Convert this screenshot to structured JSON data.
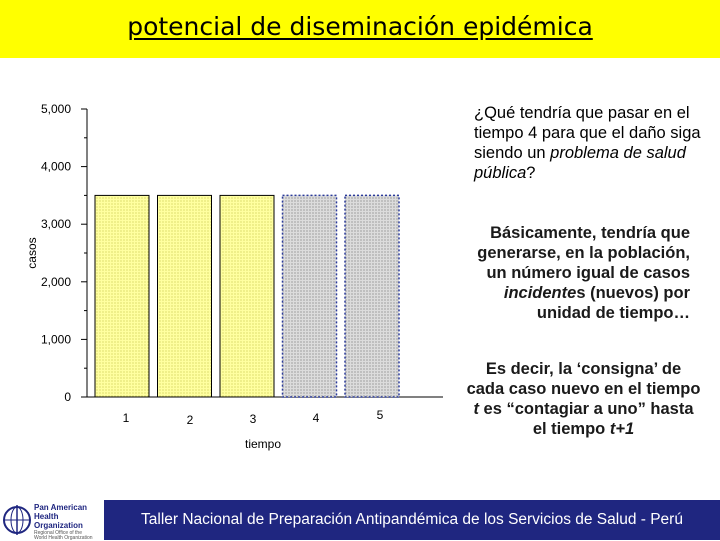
{
  "slide": {
    "title": "potencial de diseminación epidémica",
    "question_parts": [
      "¿Qué tendría que pasar en el tiempo 4 para que el daño siga siendo un ",
      "problema de salud pública",
      "?"
    ],
    "answer_parts": [
      "Básicamente, tendría que generarse, en la población, un número igual de casos ",
      "incidente",
      "s (nuevos) por unidad de tiempo…"
    ],
    "explanation_parts": [
      "Es decir, la ‘consigna’ de cada caso nuevo en el tiempo ",
      "t",
      " es “contagiar a uno” hasta el tiempo ",
      "t+1"
    ],
    "footer": "Taller Nacional de Preparación Antipandémica de los Servicios de Salud - Perú",
    "logo": {
      "lines": [
        "Pan American",
        "Health",
        "Organization"
      ],
      "sub": [
        "Regional Office of the",
        "World Health Organization"
      ]
    }
  },
  "chart_data": {
    "type": "bar",
    "categories": [
      "1",
      "2",
      "3",
      "4",
      "5"
    ],
    "values": [
      3500,
      3500,
      3500,
      3500,
      3500
    ],
    "projected": [
      false,
      false,
      false,
      true,
      true
    ],
    "ylabel": "casos",
    "xlabel": "tiempo",
    "ylim": [
      0,
      5000
    ],
    "yticks": [
      "0",
      "1,000",
      "2,000",
      "3,000",
      "4,000",
      "5,000"
    ],
    "grid": false,
    "colors": {
      "bar_fill": "#ffffa0",
      "bar_dots": "#c8c850",
      "bar_edge": "#000000",
      "projected_fill": "#dcdcdc",
      "projected_edge": "#2a3a9a",
      "projected_dots": "#777777",
      "axis": "#000000"
    }
  }
}
